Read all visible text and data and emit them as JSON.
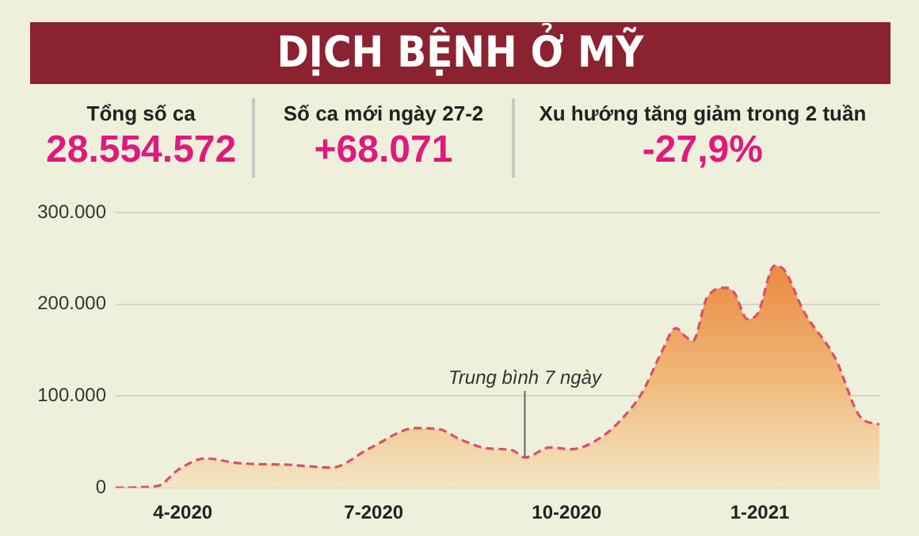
{
  "chart_data": {
    "type": "area",
    "title": "DỊCH BỆNH Ở MỸ",
    "annotations": [
      "Tổng số ca",
      "28.554.572",
      "Số ca mới ngày 27-2",
      "+68.071",
      "Xu hướng tăng giảm trong 2 tuần",
      "-27,9%",
      {
        "text": "Trung bình 7 ngày",
        "x": "2020-09-11",
        "y": 33000
      }
    ],
    "x": [
      "2020-02-29",
      "2020-03-20",
      "2020-03-30",
      "2020-04-12",
      "2020-04-27",
      "2020-05-22",
      "2020-06-11",
      "2020-06-29",
      "2020-07-21",
      "2020-08-01",
      "2020-08-11",
      "2020-08-24",
      "2020-09-05",
      "2020-09-11",
      "2020-09-23",
      "2020-10-03",
      "2020-10-18",
      "2020-10-28",
      "2020-11-06",
      "2020-11-15",
      "2020-11-22",
      "2020-11-27",
      "2020-11-30",
      "2020-12-07",
      "2020-12-16",
      "2020-12-20",
      "2020-12-26",
      "2020-12-31",
      "2021-01-08",
      "2021-01-12",
      "2021-01-22",
      "2021-02-06",
      "2021-02-18",
      "2021-02-27"
    ],
    "series": [
      {
        "color": "#d9506a",
        "values": [
          0,
          2000,
          20000,
          32000,
          27000,
          25000,
          22000,
          43000,
          65000,
          64000,
          53000,
          43000,
          41000,
          33000,
          44000,
          42000,
          56000,
          77000,
          104000,
          147000,
          174000,
          164000,
          160000,
          208000,
          218000,
          212000,
          184000,
          190000,
          242000,
          239000,
          192000,
          141000,
          77000,
          69000
        ]
      }
    ],
    "xlim": [
      "2020-02-29",
      "2021-02-27"
    ],
    "xticks": [
      {
        "value": "2020-04-01",
        "label": "4-2020"
      },
      {
        "value": "2020-07-01",
        "label": "7-2020"
      },
      {
        "value": "2020-10-01",
        "label": "10-2020"
      },
      {
        "value": "2021-01-01",
        "label": "1-2021"
      }
    ],
    "ylim": [
      0,
      300000
    ],
    "yticks": [
      {
        "value": 0,
        "label": "0"
      },
      {
        "value": 100000,
        "label": "100.000"
      },
      {
        "value": 200000,
        "label": "200.000"
      },
      {
        "value": 300000,
        "label": "300.000"
      }
    ],
    "grid": "y",
    "legend": false,
    "marker": "none",
    "line_style": "dashed"
  }
}
